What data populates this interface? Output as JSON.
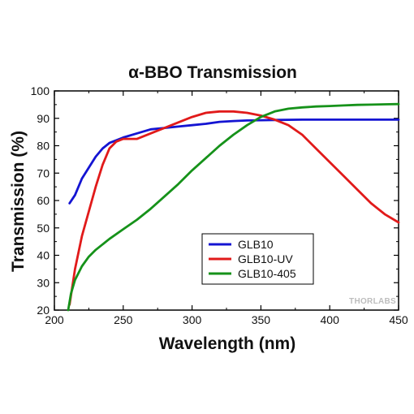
{
  "chart_data": {
    "type": "line",
    "title": "α-BBO Transmission",
    "xlabel": "Wavelength (nm)",
    "ylabel": "Transmission (%)",
    "xlim": [
      200,
      450
    ],
    "ylim": [
      20,
      100
    ],
    "x_ticks": [
      200,
      250,
      300,
      350,
      400,
      450
    ],
    "y_ticks": [
      20,
      30,
      40,
      50,
      60,
      70,
      80,
      90,
      100
    ],
    "grid": false,
    "legend_position": "lower-center",
    "watermark": "THORLABS",
    "series": [
      {
        "name": "GLB10",
        "color": "#1414d2",
        "points": [
          [
            211,
            59
          ],
          [
            215,
            62
          ],
          [
            220,
            68
          ],
          [
            225,
            72
          ],
          [
            230,
            76
          ],
          [
            235,
            79
          ],
          [
            240,
            81
          ],
          [
            245,
            82
          ],
          [
            250,
            83
          ],
          [
            260,
            84.5
          ],
          [
            270,
            86
          ],
          [
            280,
            86.5
          ],
          [
            290,
            87
          ],
          [
            300,
            87.5
          ],
          [
            310,
            88
          ],
          [
            320,
            88.7
          ],
          [
            330,
            89
          ],
          [
            340,
            89.2
          ],
          [
            350,
            89.3
          ],
          [
            360,
            89.4
          ],
          [
            380,
            89.5
          ],
          [
            400,
            89.5
          ],
          [
            420,
            89.5
          ],
          [
            450,
            89.5
          ]
        ]
      },
      {
        "name": "GLB10-UV",
        "color": "#e11a1a",
        "points": [
          [
            211,
            22
          ],
          [
            215,
            35
          ],
          [
            220,
            47
          ],
          [
            225,
            56
          ],
          [
            230,
            65
          ],
          [
            235,
            73
          ],
          [
            240,
            79
          ],
          [
            245,
            81.5
          ],
          [
            250,
            82.5
          ],
          [
            260,
            82.5
          ],
          [
            270,
            84.5
          ],
          [
            280,
            86.5
          ],
          [
            290,
            88.5
          ],
          [
            300,
            90.5
          ],
          [
            310,
            92
          ],
          [
            320,
            92.5
          ],
          [
            330,
            92.5
          ],
          [
            340,
            92
          ],
          [
            350,
            91
          ],
          [
            360,
            89.5
          ],
          [
            370,
            87.5
          ],
          [
            380,
            84
          ],
          [
            390,
            79
          ],
          [
            400,
            74
          ],
          [
            410,
            69
          ],
          [
            420,
            64
          ],
          [
            430,
            59
          ],
          [
            440,
            55
          ],
          [
            450,
            52
          ]
        ]
      },
      {
        "name": "GLB10-405",
        "color": "#16921a",
        "points": [
          [
            210,
            20
          ],
          [
            212,
            26
          ],
          [
            215,
            31
          ],
          [
            220,
            36
          ],
          [
            225,
            39.5
          ],
          [
            230,
            42
          ],
          [
            240,
            46
          ],
          [
            250,
            49.5
          ],
          [
            260,
            53
          ],
          [
            270,
            57
          ],
          [
            280,
            61.5
          ],
          [
            290,
            66
          ],
          [
            300,
            71
          ],
          [
            310,
            75.5
          ],
          [
            320,
            80
          ],
          [
            330,
            84
          ],
          [
            340,
            87.5
          ],
          [
            350,
            90.5
          ],
          [
            360,
            92.5
          ],
          [
            370,
            93.5
          ],
          [
            380,
            94
          ],
          [
            390,
            94.3
          ],
          [
            400,
            94.5
          ],
          [
            410,
            94.7
          ],
          [
            420,
            94.9
          ],
          [
            430,
            95
          ],
          [
            440,
            95.1
          ],
          [
            450,
            95.2
          ]
        ]
      }
    ]
  }
}
